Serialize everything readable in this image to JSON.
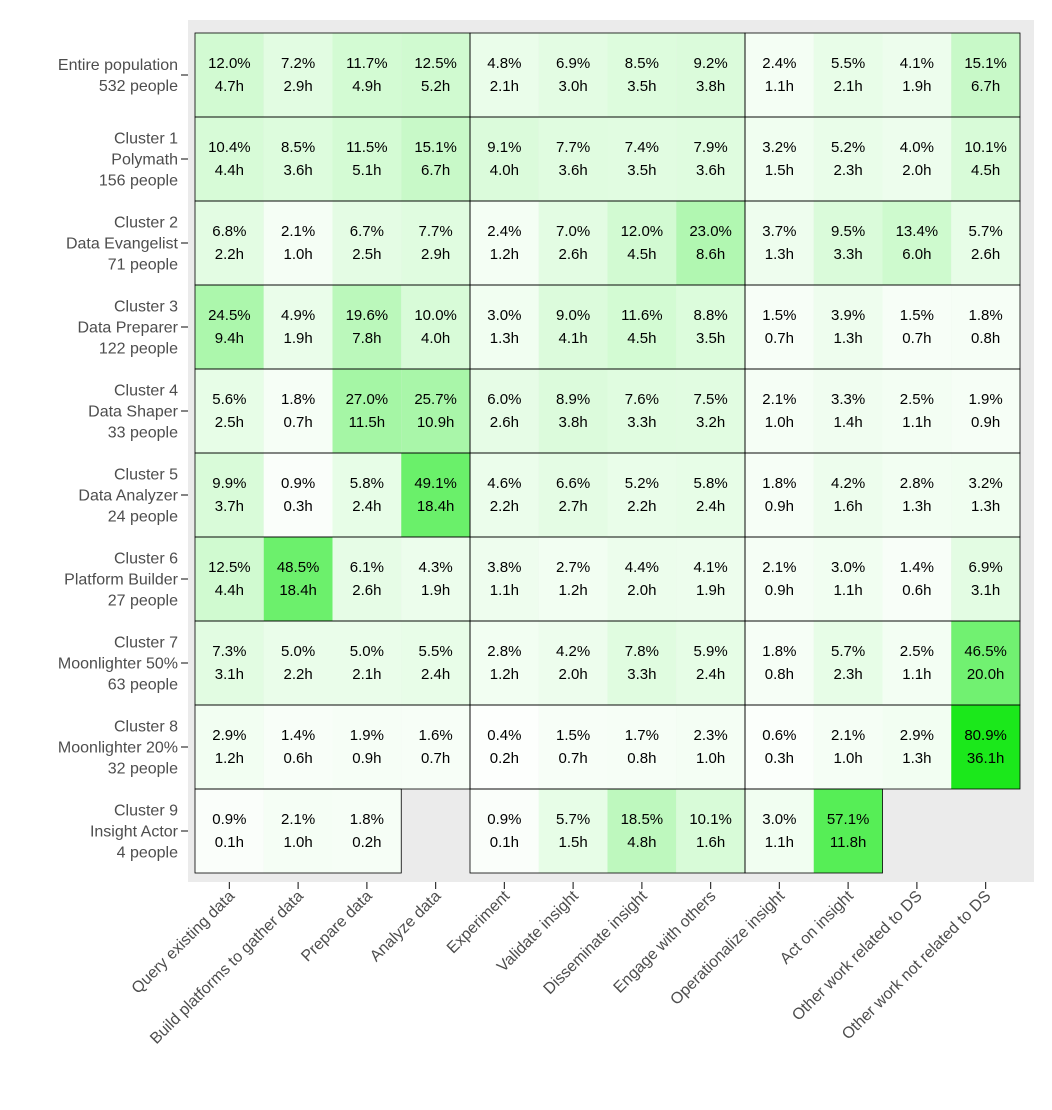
{
  "chart_data": {
    "type": "heatmap",
    "title": "",
    "xlabel": "",
    "ylabel": "",
    "value_units": [
      "percent of time",
      "hours"
    ],
    "color_scale": {
      "low": "#ffffff",
      "high": "#1be81b",
      "background": "#ebebeb"
    },
    "columns": [
      "Query existing data",
      "Build platforms to gather data",
      "Prepare data",
      "Analyze data",
      "Experiment",
      "Validate insight",
      "Disseminate insight",
      "Engage with others",
      "Operationalize insight",
      "Act on insight",
      "Other work related to DS",
      "Other work not related to DS"
    ],
    "rows": [
      {
        "label": [
          "Entire population",
          "532 people"
        ],
        "pct": [
          "12.0%",
          "7.2%",
          "11.7%",
          "12.5%",
          "4.8%",
          "6.9%",
          "8.5%",
          "9.2%",
          "2.4%",
          "5.5%",
          "4.1%",
          "15.1%"
        ],
        "hours": [
          "4.7h",
          "2.9h",
          "4.9h",
          "5.2h",
          "2.1h",
          "3.0h",
          "3.5h",
          "3.8h",
          "1.1h",
          "2.1h",
          "1.9h",
          "6.7h"
        ]
      },
      {
        "label": [
          "Cluster 1",
          "Polymath",
          "156 people"
        ],
        "pct": [
          "10.4%",
          "8.5%",
          "11.5%",
          "15.1%",
          "9.1%",
          "7.7%",
          "7.4%",
          "7.9%",
          "3.2%",
          "5.2%",
          "4.0%",
          "10.1%"
        ],
        "hours": [
          "4.4h",
          "3.6h",
          "5.1h",
          "6.7h",
          "4.0h",
          "3.6h",
          "3.5h",
          "3.6h",
          "1.5h",
          "2.3h",
          "2.0h",
          "4.5h"
        ]
      },
      {
        "label": [
          "Cluster 2",
          "Data Evangelist",
          "71 people"
        ],
        "pct": [
          "6.8%",
          "2.1%",
          "6.7%",
          "7.7%",
          "2.4%",
          "7.0%",
          "12.0%",
          "23.0%",
          "3.7%",
          "9.5%",
          "13.4%",
          "5.7%"
        ],
        "hours": [
          "2.2h",
          "1.0h",
          "2.5h",
          "2.9h",
          "1.2h",
          "2.6h",
          "4.5h",
          "8.6h",
          "1.3h",
          "3.3h",
          "6.0h",
          "2.6h"
        ]
      },
      {
        "label": [
          "Cluster 3",
          "Data Preparer",
          "122 people"
        ],
        "pct": [
          "24.5%",
          "4.9%",
          "19.6%",
          "10.0%",
          "3.0%",
          "9.0%",
          "11.6%",
          "8.8%",
          "1.5%",
          "3.9%",
          "1.5%",
          "1.8%"
        ],
        "hours": [
          "9.4h",
          "1.9h",
          "7.8h",
          "4.0h",
          "1.3h",
          "4.1h",
          "4.5h",
          "3.5h",
          "0.7h",
          "1.3h",
          "0.7h",
          "0.8h"
        ]
      },
      {
        "label": [
          "Cluster 4",
          "Data Shaper",
          "33 people"
        ],
        "pct": [
          "5.6%",
          "1.8%",
          "27.0%",
          "25.7%",
          "6.0%",
          "8.9%",
          "7.6%",
          "7.5%",
          "2.1%",
          "3.3%",
          "2.5%",
          "1.9%"
        ],
        "hours": [
          "2.5h",
          "0.7h",
          "11.5h",
          "10.9h",
          "2.6h",
          "3.8h",
          "3.3h",
          "3.2h",
          "1.0h",
          "1.4h",
          "1.1h",
          "0.9h"
        ]
      },
      {
        "label": [
          "Cluster 5",
          "Data Analyzer",
          "24 people"
        ],
        "pct": [
          "9.9%",
          "0.9%",
          "5.8%",
          "49.1%",
          "4.6%",
          "6.6%",
          "5.2%",
          "5.8%",
          "1.8%",
          "4.2%",
          "2.8%",
          "3.2%"
        ],
        "hours": [
          "3.7h",
          "0.3h",
          "2.4h",
          "18.4h",
          "2.2h",
          "2.7h",
          "2.2h",
          "2.4h",
          "0.9h",
          "1.6h",
          "1.3h",
          "1.3h"
        ]
      },
      {
        "label": [
          "Cluster 6",
          "Platform Builder",
          "27 people"
        ],
        "pct": [
          "12.5%",
          "48.5%",
          "6.1%",
          "4.3%",
          "3.8%",
          "2.7%",
          "4.4%",
          "4.1%",
          "2.1%",
          "3.0%",
          "1.4%",
          "6.9%"
        ],
        "hours": [
          "4.4h",
          "18.4h",
          "2.6h",
          "1.9h",
          "1.1h",
          "1.2h",
          "2.0h",
          "1.9h",
          "0.9h",
          "1.1h",
          "0.6h",
          "3.1h"
        ]
      },
      {
        "label": [
          "Cluster 7",
          "Moonlighter 50%",
          "63 people"
        ],
        "pct": [
          "7.3%",
          "5.0%",
          "5.0%",
          "5.5%",
          "2.8%",
          "4.2%",
          "7.8%",
          "5.9%",
          "1.8%",
          "5.7%",
          "2.5%",
          "46.5%"
        ],
        "hours": [
          "3.1h",
          "2.2h",
          "2.1h",
          "2.4h",
          "1.2h",
          "2.0h",
          "3.3h",
          "2.4h",
          "0.8h",
          "2.3h",
          "1.1h",
          "20.0h"
        ]
      },
      {
        "label": [
          "Cluster 8",
          "Moonlighter 20%",
          "32 people"
        ],
        "pct": [
          "2.9%",
          "1.4%",
          "1.9%",
          "1.6%",
          "0.4%",
          "1.5%",
          "1.7%",
          "2.3%",
          "0.6%",
          "2.1%",
          "2.9%",
          "80.9%"
        ],
        "hours": [
          "1.2h",
          "0.6h",
          "0.9h",
          "0.7h",
          "0.2h",
          "0.7h",
          "0.8h",
          "1.0h",
          "0.3h",
          "1.0h",
          "1.3h",
          "36.1h"
        ]
      },
      {
        "label": [
          "Cluster 9",
          "Insight Actor",
          "4 people"
        ],
        "pct": [
          "0.9%",
          "2.1%",
          "1.8%",
          null,
          "0.9%",
          "5.7%",
          "18.5%",
          "10.1%",
          "3.0%",
          "57.1%",
          null,
          null
        ],
        "hours": [
          "0.1h",
          "1.0h",
          "0.2h",
          null,
          "0.1h",
          "1.5h",
          "4.8h",
          "1.6h",
          "1.1h",
          "11.8h",
          null,
          null
        ]
      }
    ]
  }
}
